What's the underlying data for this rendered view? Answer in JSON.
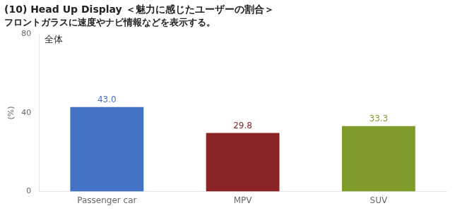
{
  "chart_data": {
    "type": "bar",
    "title": "(10) Head Up Display ＜魅力に感じたユーザーの割合＞",
    "subtitle": "フロントガラスに速度やナビ情報などを表示する。",
    "annotation": "全体",
    "ylabel": "(%)",
    "categories": [
      "Passenger car",
      "MPV",
      "SUV"
    ],
    "values": [
      43.0,
      29.8,
      33.3
    ],
    "value_labels": [
      "43.0",
      "29.8",
      "33.3"
    ],
    "colors": [
      "#4472C4",
      "#8B2525",
      "#7F9C2A"
    ],
    "ylim": [
      0,
      80
    ],
    "yticks": [
      0,
      40,
      80
    ],
    "grid": false,
    "data_labels": true
  }
}
